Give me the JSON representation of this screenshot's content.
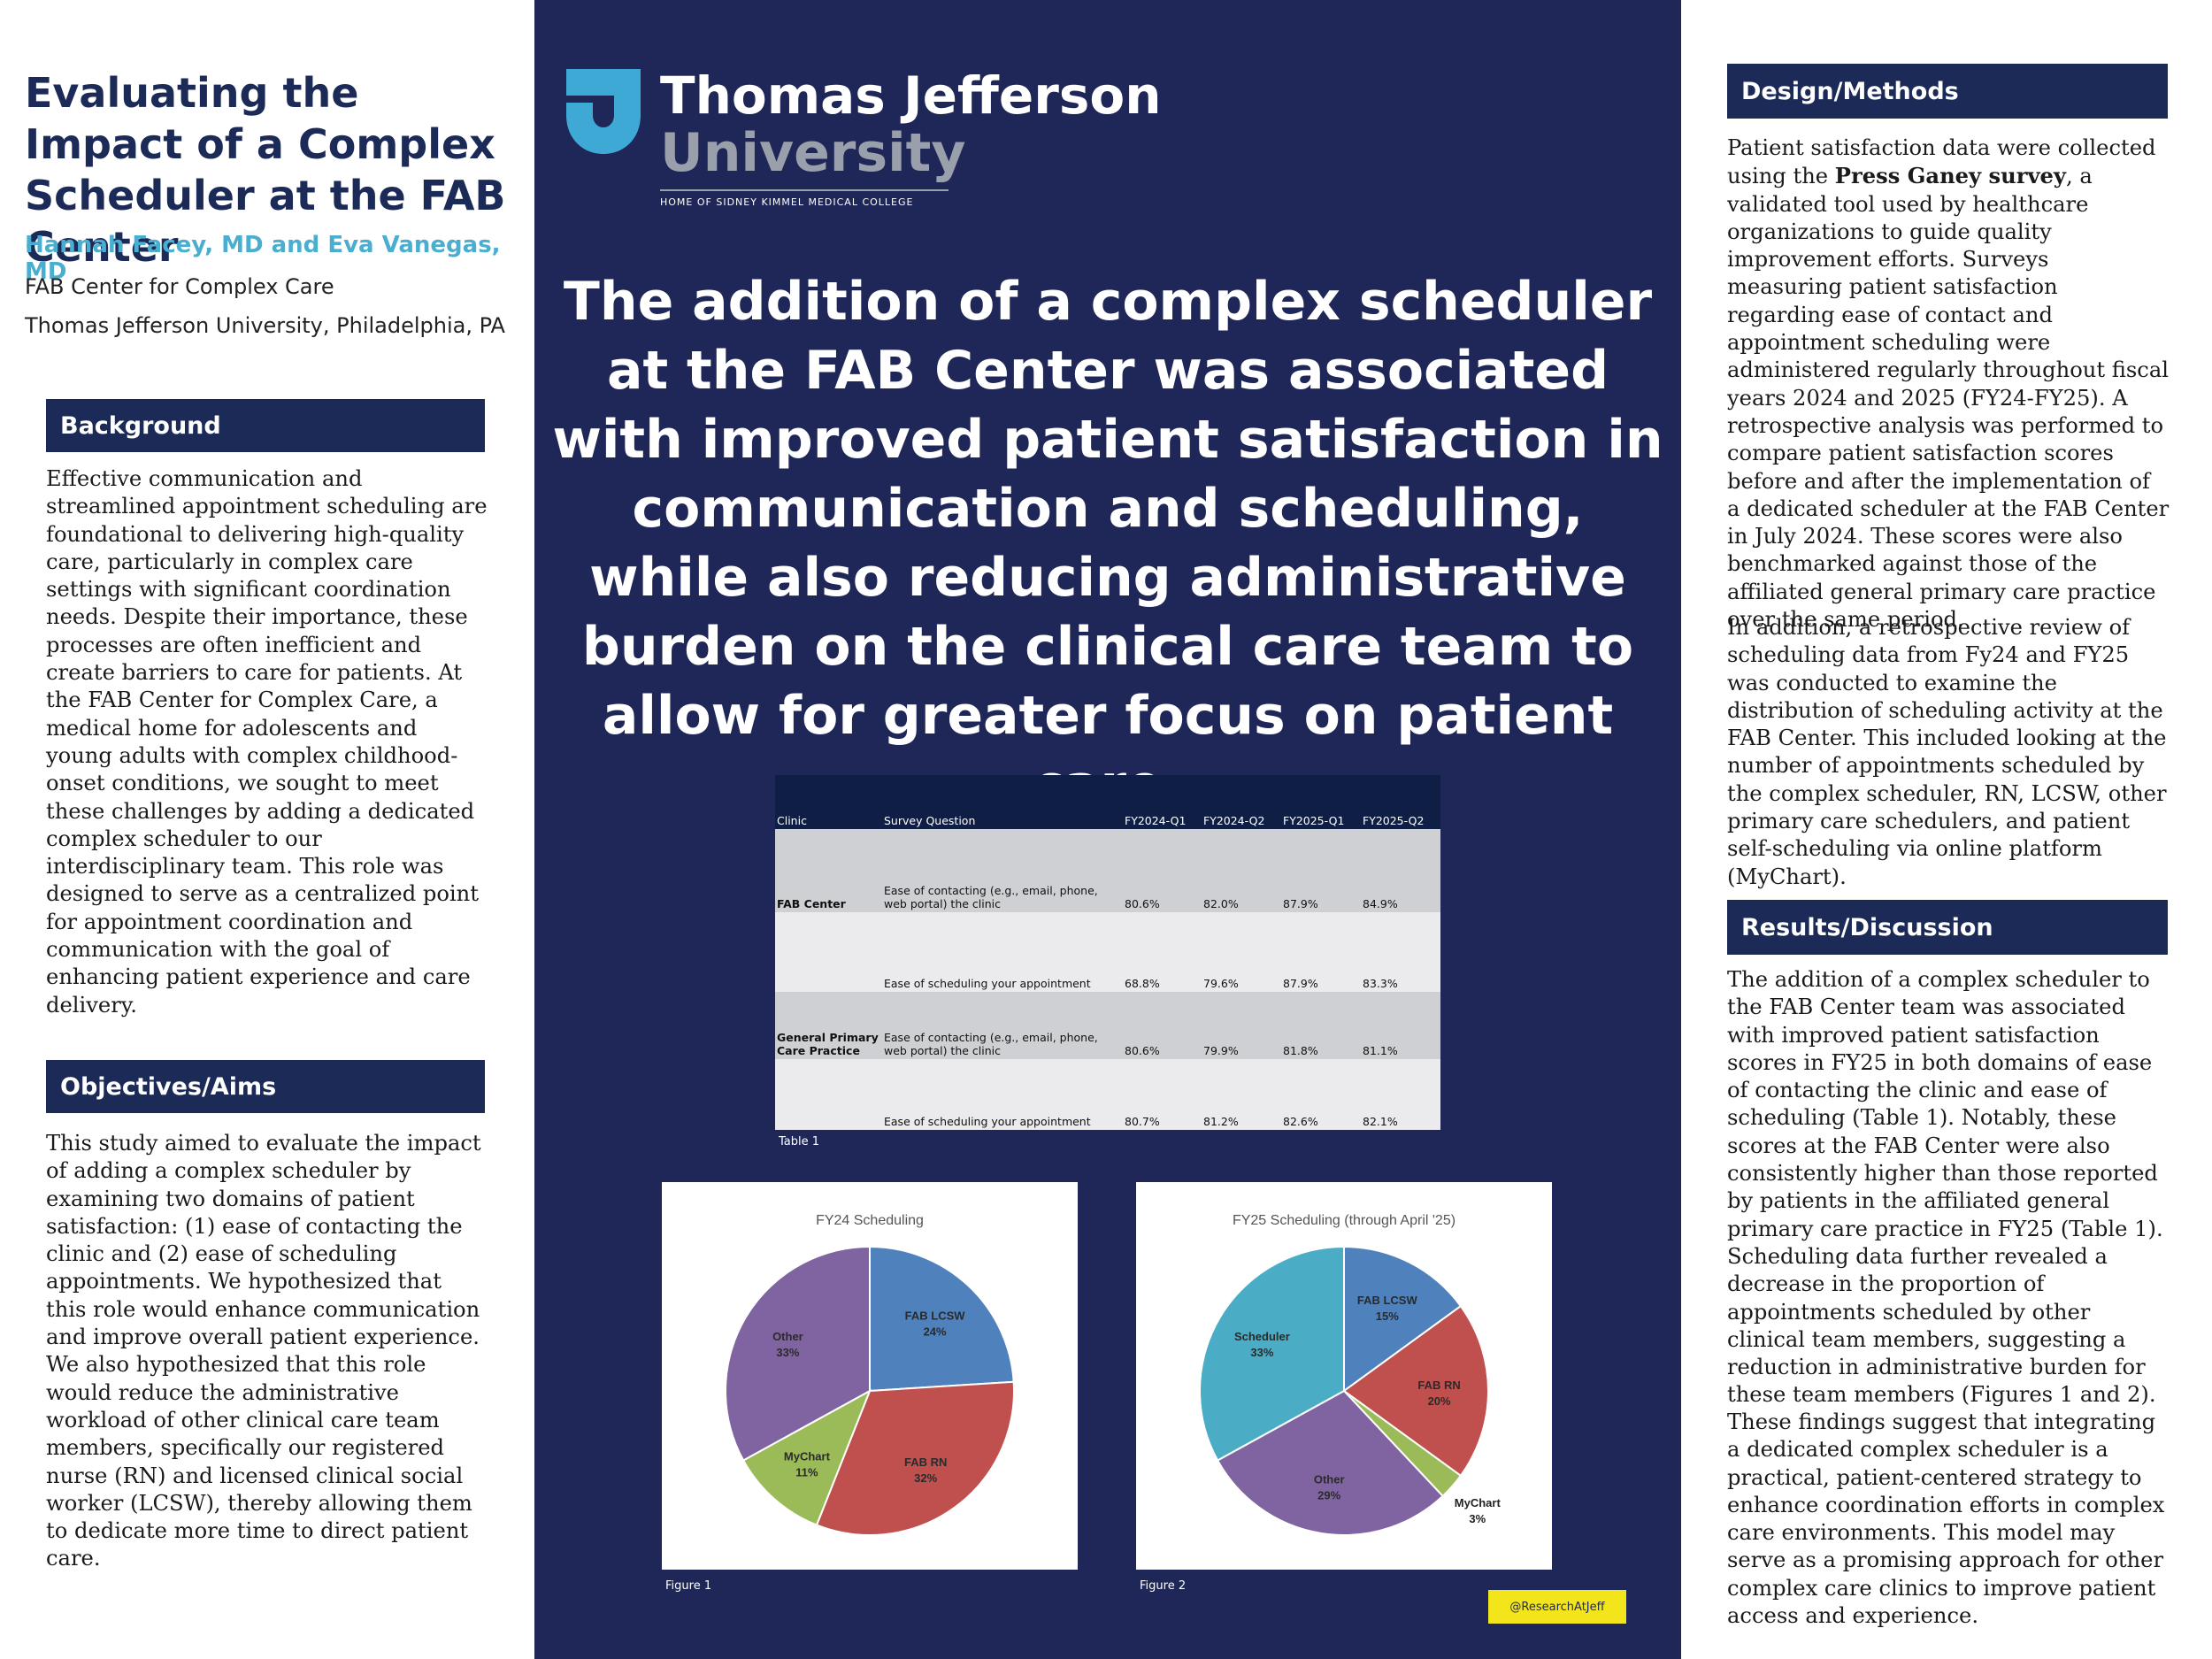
{
  "header": {
    "title": "Evaluating the Impact of a Complex Scheduler at the FAB Center",
    "authors": "Hannah Facey, MD and Eva Vanegas, MD",
    "affiliation_1": "FAB Center for Complex Care",
    "affiliation_2": "Thomas Jefferson University, Philadelphia, PA"
  },
  "background": {
    "heading": "Background",
    "text": "Effective communication and streamlined appointment scheduling are foundational to delivering high-quality care, particularly in complex care settings with significant coordination needs. Despite their importance, these processes are often inefficient and create barriers to care for patients. At the FAB Center for Complex Care, a medical home for adolescents and young adults with complex childhood-onset conditions, we sought to meet these challenges by adding a dedicated complex scheduler to our interdisciplinary team. This role was designed to serve as a centralized point for appointment coordination and communication with the goal of enhancing patient experience and care delivery."
  },
  "objectives": {
    "heading": "Objectives/Aims",
    "text": "This study aimed to evaluate the impact of adding a complex scheduler by examining two domains of patient satisfaction: (1) ease of contacting the clinic and (2) ease of scheduling appointments. We hypothesized that this role would enhance communication and improve overall patient experience. We also hypothesized that this role would reduce the administrative workload of other clinical care team members, specifically our registered nurse (RN) and licensed clinical social worker (LCSW), thereby allowing them to dedicate more time to direct patient care."
  },
  "logo": {
    "line1": "Thomas Jefferson",
    "line2": "University",
    "tagline": "HOME OF SIDNEY KIMMEL MEDICAL COLLEGE",
    "mark_color": "#3fa9d6"
  },
  "headline": "The addition of a complex scheduler at the FAB Center was associated with improved patient satisfaction in communication and scheduling, while also reducing administrative burden on the clinical care team to allow for greater focus on patient care.",
  "table": {
    "headers": [
      "Clinic",
      "Survey Question",
      "FY2024-Q1",
      "FY2024-Q2",
      "FY2025-Q1",
      "FY2025-Q2"
    ],
    "rows": [
      {
        "clinic": "FAB Center",
        "question": "Ease of contacting (e.g., email, phone, web portal) the clinic",
        "values": [
          "80.6%",
          "82.0%",
          "87.9%",
          "84.9%"
        ]
      },
      {
        "clinic": "",
        "question": "Ease of scheduling your appointment",
        "values": [
          "68.8%",
          "79.6%",
          "87.9%",
          "83.3%"
        ]
      },
      {
        "clinic": "General Primary Care Practice",
        "question": "Ease of contacting (e.g., email, phone, web portal) the clinic",
        "values": [
          "80.6%",
          "79.9%",
          "81.8%",
          "81.1%"
        ]
      },
      {
        "clinic": "",
        "question": "Ease of scheduling your appointment",
        "values": [
          "80.7%",
          "81.2%",
          "82.6%",
          "82.1%"
        ]
      }
    ],
    "caption": "Table 1"
  },
  "figures": {
    "fig1_caption": "Figure 1",
    "fig2_caption": "Figure 2"
  },
  "handle": "@ResearchAtJeff",
  "design_methods": {
    "heading": "Design/Methods",
    "p1_before": "Patient satisfaction data were collected using the ",
    "p1_bold": "Press Ganey survey",
    "p1_after": ", a validated tool used by healthcare organizations to guide quality improvement efforts. Surveys measuring patient satisfaction regarding ease of contact and appointment scheduling were administered regularly throughout fiscal years 2024 and 2025 (FY24-FY25). A retrospective analysis was performed to compare patient satisfaction scores before and after the implementation of a dedicated scheduler at the FAB Center in July 2024. These scores were also benchmarked against those of the affiliated general primary care practice over the same period.",
    "p2": "In addition, a retrospective review of scheduling data from Fy24 and FY25 was conducted to examine the distribution of scheduling activity at the FAB Center. This included looking at the number of appointments scheduled by the complex scheduler, RN, LCSW, other primary care schedulers, and patient self-scheduling via online platform (MyChart)."
  },
  "results": {
    "heading": "Results/Discussion",
    "p1": "The addition of a complex scheduler to the FAB Center team was associated with improved patient satisfaction scores in FY25 in both domains of ease of contacting the clinic and ease of scheduling (Table 1). Notably, these scores at the FAB Center were also consistently higher than those reported by patients in the affiliated general primary care practice in FY25 (Table 1). Scheduling data further revealed a decrease in the proportion of appointments scheduled by other clinical team members, suggesting a reduction in administrative burden for these team members (Figures 1 and 2).",
    "p2": "These findings suggest that integrating a dedicated complex scheduler is a practical, patient-centered strategy to enhance coordination efforts in complex care environments. This model may serve as a promising approach for other complex care clinics to improve patient access and experience."
  },
  "chart_data": [
    {
      "type": "pie",
      "title": "FY24 Scheduling",
      "slices": [
        {
          "label": "FAB LCSW",
          "value": 24,
          "color": "#4f81bd"
        },
        {
          "label": "FAB RN",
          "value": 32,
          "color": "#c0504d"
        },
        {
          "label": "MyChart",
          "value": 11,
          "color": "#9bbb59"
        },
        {
          "label": "Other",
          "value": 33,
          "color": "#8064a2"
        }
      ]
    },
    {
      "type": "pie",
      "title": "FY25 Scheduling (through April '25)",
      "slices": [
        {
          "label": "FAB LCSW",
          "value": 15,
          "color": "#4f81bd"
        },
        {
          "label": "FAB RN",
          "value": 20,
          "color": "#c0504d"
        },
        {
          "label": "MyChart",
          "value": 3,
          "color": "#9bbb59"
        },
        {
          "label": "Other",
          "value": 29,
          "color": "#8064a2"
        },
        {
          "label": "Scheduler",
          "value": 33,
          "color": "#4bacc6"
        }
      ]
    }
  ]
}
